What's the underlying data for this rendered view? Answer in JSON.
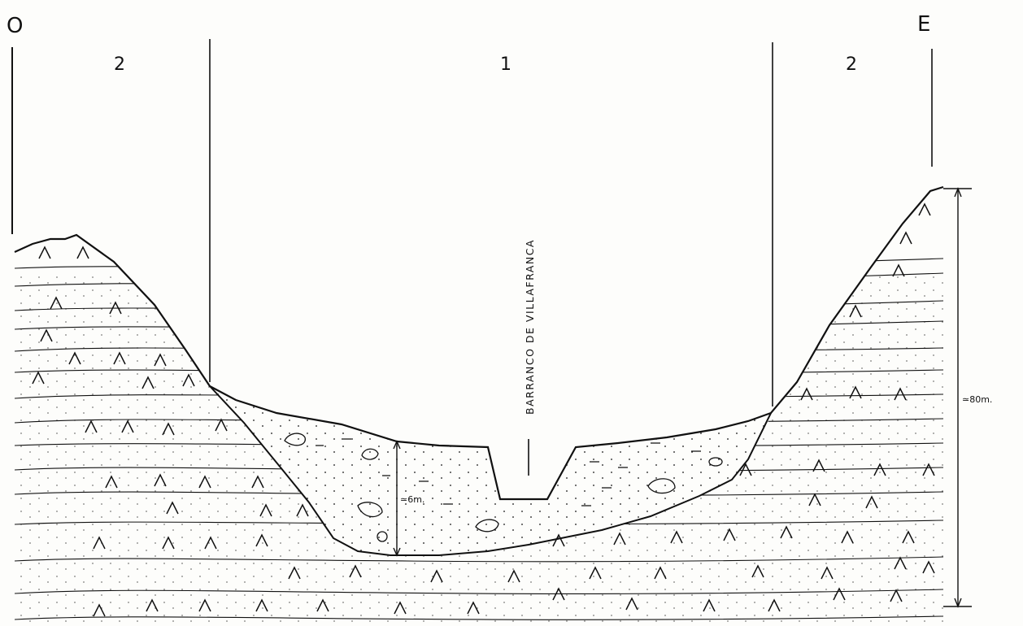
{
  "cardinal": {
    "west": "O",
    "east": "E"
  },
  "zones": {
    "left": "2",
    "center": "1",
    "right": "2"
  },
  "river_label": "BARRANCO DE VILLAFRANCA",
  "deposit_thickness_label": "≃6m.",
  "total_height_label": "≃80m.",
  "colors": {
    "ink": "#111111",
    "paper": "#fdfdfb"
  },
  "symbols": {
    "bedrock": "caret-symbol",
    "sand": "dot-pattern"
  }
}
